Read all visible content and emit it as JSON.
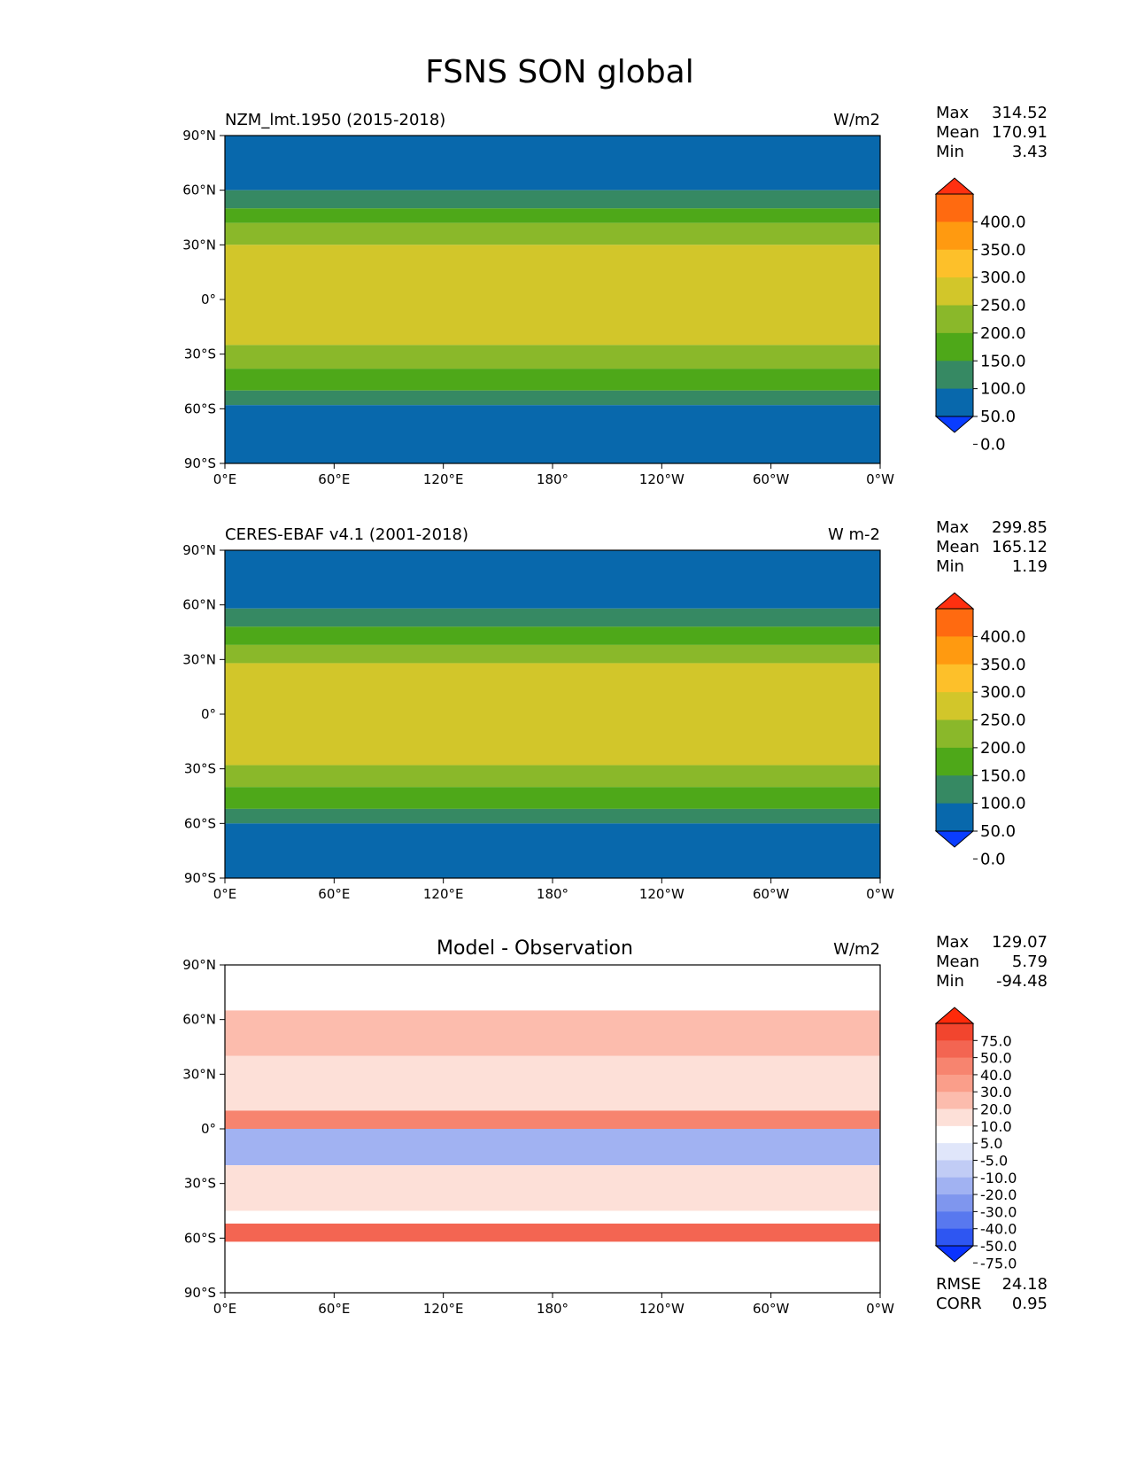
{
  "chart_data": {
    "title": "FSNS SON global",
    "panels": [
      {
        "type": "heatmap",
        "title_left": "NZM_lmt.1950 (2015-2018)",
        "title_center": "",
        "units": "W/m2",
        "stats": [
          {
            "label": "Max",
            "value": "314.52"
          },
          {
            "label": "Mean",
            "value": "170.91"
          },
          {
            "label": "Min",
            "value": "3.43"
          }
        ],
        "colorbar": {
          "levels": [
            "400.0",
            "350.0",
            "300.0",
            "250.0",
            "200.0",
            "150.0",
            "100.0",
            "50.0",
            "0.0"
          ],
          "colors": [
            "#ff3010",
            "#ff6a10",
            "#ff9a10",
            "#fdc02a",
            "#d2c62a",
            "#8ab82a",
            "#4ea819",
            "#368963",
            "#0868ac",
            "#0a3dff"
          ],
          "extend": "both"
        },
        "bands": [
          {
            "lat_top": 90,
            "lat_bottom": 60,
            "color_index": 8
          },
          {
            "lat_top": 60,
            "lat_bottom": 50,
            "color_index": 7
          },
          {
            "lat_top": 50,
            "lat_bottom": 42,
            "color_index": 6
          },
          {
            "lat_top": 42,
            "lat_bottom": 30,
            "color_index": 5
          },
          {
            "lat_top": 30,
            "lat_bottom": 18,
            "color_index": 4
          },
          {
            "lat_top": 18,
            "lat_bottom": -25,
            "color_index": 4
          },
          {
            "lat_top": -25,
            "lat_bottom": -38,
            "color_index": 5
          },
          {
            "lat_top": -38,
            "lat_bottom": -50,
            "color_index": 6
          },
          {
            "lat_top": -50,
            "lat_bottom": -58,
            "color_index": 7
          },
          {
            "lat_top": -58,
            "lat_bottom": -90,
            "color_index": 8
          }
        ]
      },
      {
        "type": "heatmap",
        "title_left": "CERES-EBAF v4.1 (2001-2018)",
        "title_center": "",
        "units": "W m-2",
        "stats": [
          {
            "label": "Max",
            "value": "299.85"
          },
          {
            "label": "Mean",
            "value": "165.12"
          },
          {
            "label": "Min",
            "value": "1.19"
          }
        ],
        "colorbar": {
          "levels": [
            "400.0",
            "350.0",
            "300.0",
            "250.0",
            "200.0",
            "150.0",
            "100.0",
            "50.0",
            "0.0"
          ],
          "colors": [
            "#ff3010",
            "#ff6a10",
            "#ff9a10",
            "#fdc02a",
            "#d2c62a",
            "#8ab82a",
            "#4ea819",
            "#368963",
            "#0868ac",
            "#0a3dff"
          ],
          "extend": "both"
        },
        "bands": [
          {
            "lat_top": 90,
            "lat_bottom": 58,
            "color_index": 8
          },
          {
            "lat_top": 58,
            "lat_bottom": 48,
            "color_index": 7
          },
          {
            "lat_top": 48,
            "lat_bottom": 38,
            "color_index": 6
          },
          {
            "lat_top": 38,
            "lat_bottom": 28,
            "color_index": 5
          },
          {
            "lat_top": 28,
            "lat_bottom": -28,
            "color_index": 4
          },
          {
            "lat_top": -28,
            "lat_bottom": -40,
            "color_index": 5
          },
          {
            "lat_top": -40,
            "lat_bottom": -52,
            "color_index": 6
          },
          {
            "lat_top": -52,
            "lat_bottom": -60,
            "color_index": 7
          },
          {
            "lat_top": -60,
            "lat_bottom": -90,
            "color_index": 8
          }
        ]
      },
      {
        "type": "heatmap",
        "title_left": "",
        "title_center": "Model - Observation",
        "units": "W/m2",
        "stats": [
          {
            "label": "Max",
            "value": "129.07"
          },
          {
            "label": "Mean",
            "value": "5.79"
          },
          {
            "label": "Min",
            "value": "-94.48"
          }
        ],
        "colorbar": {
          "levels": [
            "75.0",
            "50.0",
            "40.0",
            "30.0",
            "20.0",
            "10.0",
            "5.0",
            "-5.0",
            "-10.0",
            "-20.0",
            "-30.0",
            "-40.0",
            "-50.0",
            "-75.0"
          ],
          "colors": [
            "#ff2a0a",
            "#f2452e",
            "#f36552",
            "#f7846f",
            "#fa9e8a",
            "#fcbcad",
            "#fde0d8",
            "#ffffff",
            "#e0e6fa",
            "#c1ccf5",
            "#a1b2f2",
            "#7f96ee",
            "#5878ef",
            "#2e56f2",
            "#0a33ff"
          ],
          "extend": "both"
        },
        "bands": [
          {
            "lat_top": 90,
            "lat_bottom": 65,
            "color_index": 7
          },
          {
            "lat_top": 65,
            "lat_bottom": 40,
            "color_index": 5
          },
          {
            "lat_top": 40,
            "lat_bottom": 10,
            "color_index": 6
          },
          {
            "lat_top": 10,
            "lat_bottom": 0,
            "color_index": 3
          },
          {
            "lat_top": 0,
            "lat_bottom": -20,
            "color_index": 10
          },
          {
            "lat_top": -20,
            "lat_bottom": -45,
            "color_index": 6
          },
          {
            "lat_top": -45,
            "lat_bottom": -52,
            "color_index": 7
          },
          {
            "lat_top": -52,
            "lat_bottom": -62,
            "color_index": 2
          },
          {
            "lat_top": -62,
            "lat_bottom": -90,
            "color_index": 7
          }
        ],
        "extra_stats": [
          {
            "label": "RMSE",
            "value": "24.18"
          },
          {
            "label": "CORR",
            "value": "0.95"
          }
        ]
      }
    ],
    "xticks": [
      "0°E",
      "60°E",
      "120°E",
      "180°",
      "120°W",
      "60°W",
      "0°W"
    ],
    "yticks": [
      "90°N",
      "60°N",
      "30°N",
      "0°",
      "30°S",
      "60°S",
      "90°S"
    ],
    "xlim": [
      0,
      360
    ],
    "ylim": [
      -90,
      90
    ]
  }
}
